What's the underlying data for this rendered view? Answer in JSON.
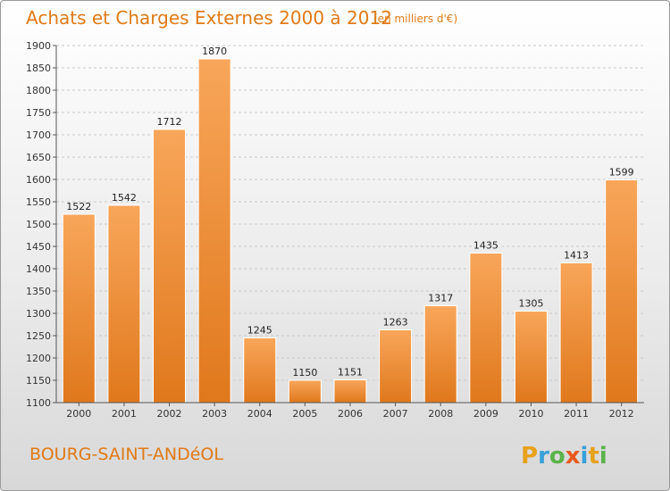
{
  "title": "Achats et Charges Externes 2000 à 2012",
  "subtitle": "(en milliers d'€)",
  "place_name": "BOURG-SAINT-ANDéOL",
  "logo": {
    "letters": [
      "P",
      "r",
      "o",
      "x",
      "i",
      "t",
      "i"
    ],
    "colors": [
      "#e8a11c",
      "#3aa0d8",
      "#5ab34a",
      "#e8591c",
      "#3aa0d8",
      "#e8a11c",
      "#5ab34a"
    ]
  },
  "colors": {
    "bar_top": "#f8a65a",
    "bar_bottom": "#e0781c",
    "bar_edge": "#ffffff",
    "accent": "#e07a16"
  },
  "chart_data": {
    "type": "bar",
    "title": "Achats et Charges Externes 2000 à 2012",
    "subtitle": "(en milliers d'€)",
    "categories": [
      "2000",
      "2001",
      "2002",
      "2003",
      "2004",
      "2005",
      "2006",
      "2007",
      "2008",
      "2009",
      "2010",
      "2011",
      "2012"
    ],
    "values": [
      1522,
      1542,
      1712,
      1870,
      1245,
      1150,
      1151,
      1263,
      1317,
      1435,
      1305,
      1413,
      1599
    ],
    "value_labels": [
      "1522",
      "1542",
      "1712",
      "1870",
      "1245",
      "1150",
      "1151",
      "1263",
      "1317",
      "1435",
      "1305",
      "1413",
      "1599"
    ],
    "ylim": [
      1100,
      1900
    ],
    "yticks": [
      1100,
      1150,
      1200,
      1250,
      1300,
      1350,
      1400,
      1450,
      1500,
      1550,
      1600,
      1650,
      1700,
      1750,
      1800,
      1850,
      1900
    ],
    "grid": "horizontal dashed",
    "legend": "none"
  }
}
